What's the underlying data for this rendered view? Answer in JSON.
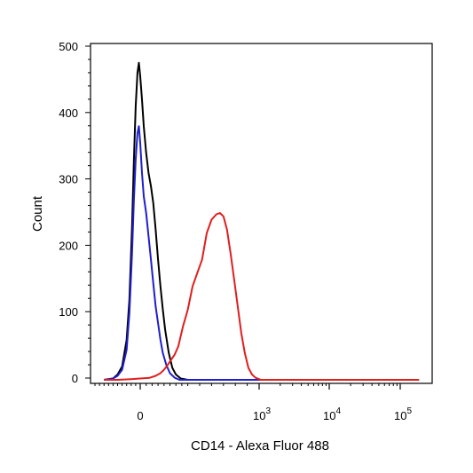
{
  "chart_data": {
    "type": "line",
    "xlabel": "CD14 - Alexa Fluor 488",
    "ylabel": "Count",
    "x_scale": "biexponential",
    "x_ticks": [
      {
        "value": 0,
        "base": "0",
        "exp": ""
      },
      {
        "value": 1000,
        "base": "10",
        "exp": "3"
      },
      {
        "value": 10000,
        "base": "10",
        "exp": "4"
      },
      {
        "value": 100000,
        "base": "10",
        "exp": "5"
      }
    ],
    "y_ticks": [
      "0",
      "100",
      "200",
      "300",
      "400",
      "500"
    ],
    "ylim": [
      0,
      500
    ],
    "grid": false,
    "series": [
      {
        "color": "#000000",
        "points": [
          [
            -400,
            0
          ],
          [
            -300,
            2
          ],
          [
            -250,
            8
          ],
          [
            -200,
            20
          ],
          [
            -150,
            60
          ],
          [
            -120,
            120
          ],
          [
            -90,
            230
          ],
          [
            -70,
            330
          ],
          [
            -50,
            410
          ],
          [
            -30,
            460
          ],
          [
            -15,
            475
          ],
          [
            0,
            455
          ],
          [
            15,
            420
          ],
          [
            30,
            380
          ],
          [
            50,
            340
          ],
          [
            70,
            310
          ],
          [
            90,
            290
          ],
          [
            110,
            265
          ],
          [
            130,
            225
          ],
          [
            150,
            180
          ],
          [
            170,
            140
          ],
          [
            190,
            105
          ],
          [
            210,
            75
          ],
          [
            240,
            40
          ],
          [
            270,
            18
          ],
          [
            300,
            8
          ],
          [
            340,
            2
          ],
          [
            400,
            0
          ],
          [
            1000,
            0
          ],
          [
            150000,
            0
          ]
        ]
      },
      {
        "color": "#1f1fcc",
        "points": [
          [
            -400,
            0
          ],
          [
            -300,
            2
          ],
          [
            -250,
            6
          ],
          [
            -200,
            15
          ],
          [
            -150,
            45
          ],
          [
            -120,
            100
          ],
          [
            -90,
            190
          ],
          [
            -70,
            270
          ],
          [
            -50,
            330
          ],
          [
            -30,
            370
          ],
          [
            -15,
            380
          ],
          [
            0,
            355
          ],
          [
            15,
            310
          ],
          [
            30,
            275
          ],
          [
            50,
            250
          ],
          [
            70,
            215
          ],
          [
            90,
            180
          ],
          [
            110,
            145
          ],
          [
            130,
            110
          ],
          [
            150,
            85
          ],
          [
            170,
            60
          ],
          [
            190,
            40
          ],
          [
            220,
            22
          ],
          [
            250,
            10
          ],
          [
            290,
            3
          ],
          [
            330,
            0
          ],
          [
            1000,
            0
          ],
          [
            150000,
            0
          ]
        ]
      },
      {
        "color": "#e01e1e",
        "points": [
          [
            -400,
            0
          ],
          [
            -250,
            0
          ],
          [
            -100,
            1
          ],
          [
            0,
            2
          ],
          [
            80,
            3
          ],
          [
            130,
            6
          ],
          [
            170,
            10
          ],
          [
            200,
            15
          ],
          [
            230,
            22
          ],
          [
            260,
            30
          ],
          [
            290,
            38
          ],
          [
            320,
            50
          ],
          [
            360,
            80
          ],
          [
            400,
            105
          ],
          [
            440,
            140
          ],
          [
            480,
            160
          ],
          [
            520,
            180
          ],
          [
            560,
            220
          ],
          [
            600,
            240
          ],
          [
            640,
            248
          ],
          [
            670,
            250
          ],
          [
            700,
            245
          ],
          [
            730,
            225
          ],
          [
            760,
            190
          ],
          [
            790,
            150
          ],
          [
            820,
            110
          ],
          [
            850,
            70
          ],
          [
            880,
            40
          ],
          [
            910,
            18
          ],
          [
            940,
            8
          ],
          [
            970,
            3
          ],
          [
            1000,
            1
          ],
          [
            1050,
            0
          ],
          [
            150000,
            0
          ]
        ]
      }
    ]
  }
}
